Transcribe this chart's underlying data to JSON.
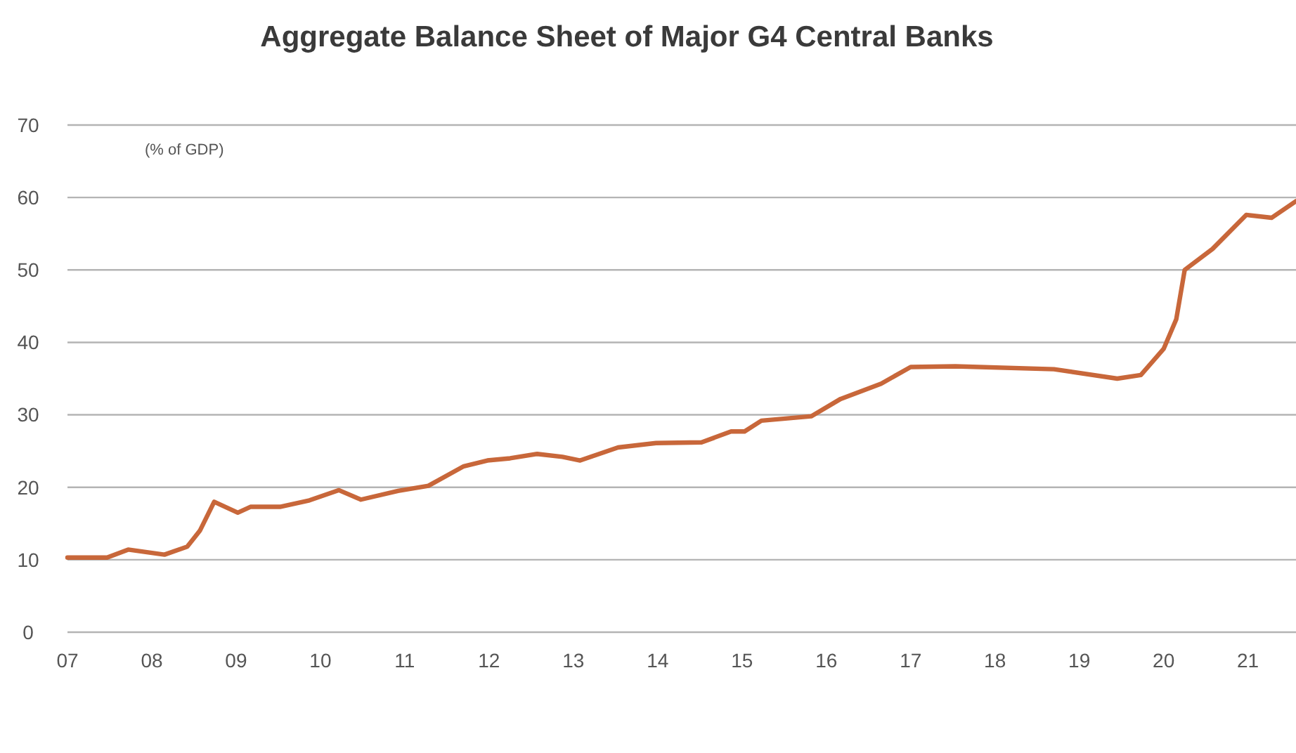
{
  "chart_data": {
    "type": "line",
    "title": "Aggregate Balance Sheet of Major G4 Central Banks",
    "ylabel": "(% of GDP)",
    "xlim": [
      2007,
      2021.57
    ],
    "ylim": [
      0,
      70
    ],
    "xticks": [
      {
        "value": 2007,
        "label": "07"
      },
      {
        "value": 2008,
        "label": "08"
      },
      {
        "value": 2009,
        "label": "09"
      },
      {
        "value": 2010,
        "label": "10"
      },
      {
        "value": 2011,
        "label": "11"
      },
      {
        "value": 2012,
        "label": "12"
      },
      {
        "value": 2013,
        "label": "13"
      },
      {
        "value": 2014,
        "label": "14"
      },
      {
        "value": 2015,
        "label": "15"
      },
      {
        "value": 2016,
        "label": "16"
      },
      {
        "value": 2017,
        "label": "17"
      },
      {
        "value": 2018,
        "label": "18"
      },
      {
        "value": 2019,
        "label": "19"
      },
      {
        "value": 2020,
        "label": "20"
      },
      {
        "value": 2021,
        "label": "21"
      }
    ],
    "yticks": [
      0,
      10,
      20,
      30,
      40,
      50,
      60,
      70
    ],
    "grid": "y",
    "series": [
      {
        "color": "#c8673a",
        "x": [
          2007.0,
          2007.47,
          2007.72,
          2008.15,
          2008.42,
          2008.57,
          2008.74,
          2009.02,
          2009.17,
          2009.52,
          2009.87,
          2010.22,
          2010.48,
          2010.92,
          2011.28,
          2011.7,
          2011.98,
          2012.25,
          2012.57,
          2012.87,
          2013.08,
          2013.53,
          2013.98,
          2014.52,
          2014.87,
          2015.03,
          2015.23,
          2015.82,
          2016.17,
          2016.65,
          2017.0,
          2017.53,
          2018.7,
          2019.45,
          2019.73,
          2020.0,
          2020.15,
          2020.25,
          2020.58,
          2020.98,
          2021.28,
          2021.57
        ],
        "values": [
          10.3,
          10.3,
          11.4,
          10.7,
          11.8,
          14,
          18,
          16.5,
          17.3,
          17.3,
          18.2,
          19.6,
          18.3,
          19.5,
          20.2,
          22.9,
          23.7,
          24,
          24.6,
          24.2,
          23.7,
          25.5,
          26.1,
          26.2,
          27.7,
          27.7,
          29.2,
          29.8,
          32.2,
          34.3,
          36.6,
          36.7,
          36.3,
          35,
          35.5,
          39.1,
          43.2,
          50,
          52.9,
          57.6,
          57.2,
          59.5
        ]
      }
    ]
  }
}
